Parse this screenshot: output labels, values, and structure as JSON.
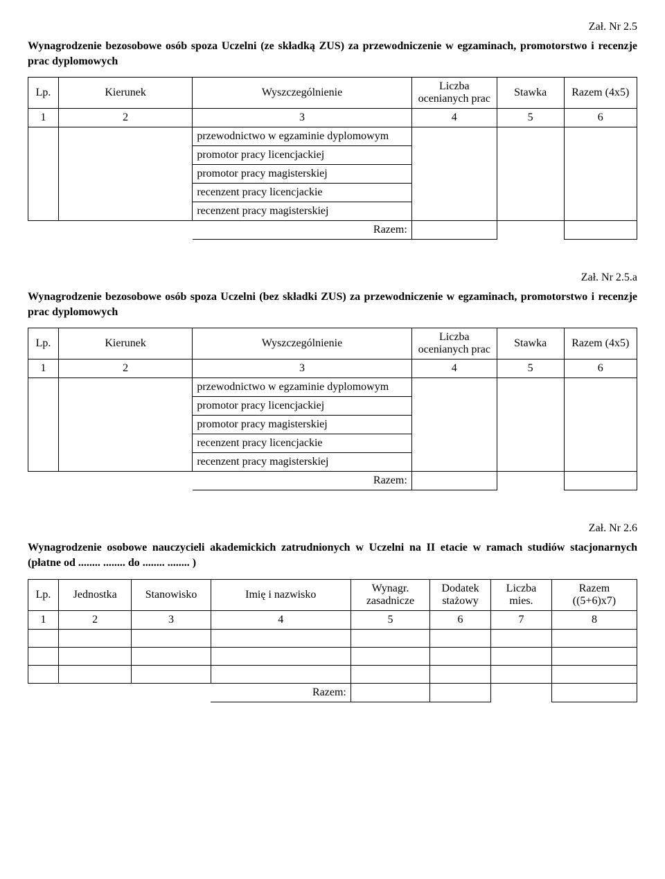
{
  "attach1": "Zał. Nr 2.5",
  "section1_title": "Wynagrodzenie bezosobowe osób spoza Uczelni (ze składką ZUS) za przewodniczenie w egzaminach, promotorstwo i recenzje prac dyplomowych",
  "attach2": "Zał. Nr 2.5.a",
  "section2_title": "Wynagrodzenie bezosobowe osób spoza Uczelni (bez składki ZUS) za przewodniczenie w egzaminach, promotorstwo i recenzje prac dyplomowych",
  "attach3": "Zał. Nr 2.6",
  "section3_title": "Wynagrodzenie osobowe nauczycieli akademickich zatrudnionych w Uczelni na II etacie w ramach studiów stacjonarnych (płatne od ........ ........ do ........ ........ )",
  "t1": {
    "headers": {
      "lp": "Lp.",
      "kierunek": "Kierunek",
      "wyszczegolnienie": "Wyszczególnienie",
      "liczba": "Liczba ocenianych prac",
      "stawka": "Stawka",
      "razem": "Razem (4x5)"
    },
    "numrow": {
      "c1": "1",
      "c2": "2",
      "c3": "3",
      "c4": "4",
      "c5": "5",
      "c6": "6"
    },
    "rows": [
      "przewodnictwo w egzaminie dyplomowym",
      "promotor pracy licencjackiej",
      "promotor pracy magisterskiej",
      "recenzent pracy licencjackie",
      "recenzent pracy magisterskiej"
    ],
    "sum_label": "Razem:"
  },
  "t2": {
    "headers": {
      "lp": "Lp.",
      "jednostka": "Jednostka",
      "stanowisko": "Stanowisko",
      "imie": "Imię i nazwisko",
      "wynagr": "Wynagr. zasadnicze",
      "dodatek": "Dodatek stażowy",
      "liczba": "Liczba mies.",
      "razem": "Razem ((5+6)x7)"
    },
    "numrow": {
      "c1": "1",
      "c2": "2",
      "c3": "3",
      "c4": "4",
      "c5": "5",
      "c6": "6",
      "c7": "7",
      "c8": "8"
    },
    "sum_label": "Razem:"
  }
}
